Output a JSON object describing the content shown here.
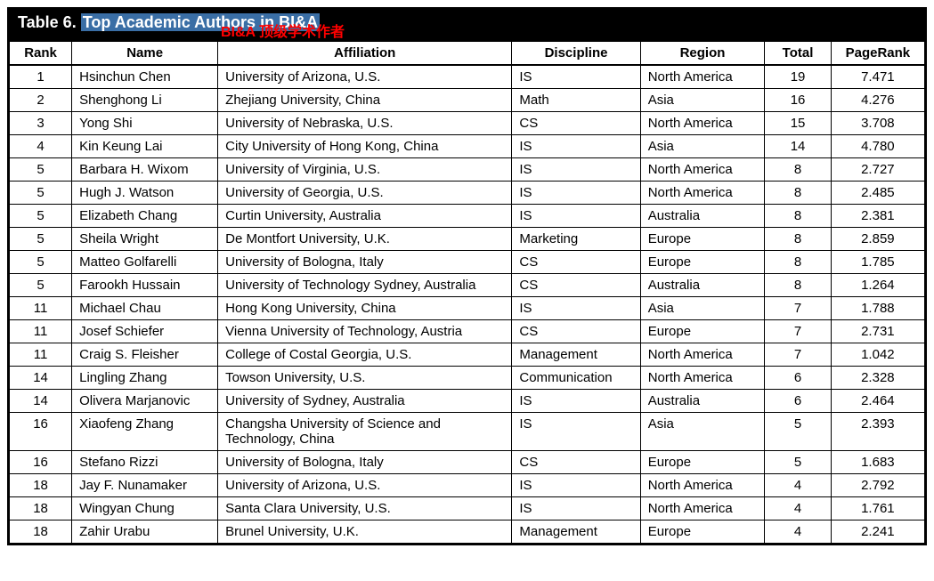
{
  "title": {
    "label": "Table 6.",
    "highlighted": "Top Academic Authors in BI&A",
    "annotation": "BI&A 顶级学术作者"
  },
  "columns": [
    "Rank",
    "Name",
    "Affiliation",
    "Discipline",
    "Region",
    "Total",
    "PageRank"
  ],
  "rows": [
    {
      "rank": "1",
      "name": "Hsinchun Chen",
      "aff": "University of Arizona, U.S.",
      "disc": "IS",
      "region": "North America",
      "total": "19",
      "pr": "7.471"
    },
    {
      "rank": "2",
      "name": "Shenghong Li",
      "aff": "Zhejiang University, China",
      "disc": "Math",
      "region": "Asia",
      "total": "16",
      "pr": "4.276"
    },
    {
      "rank": "3",
      "name": "Yong Shi",
      "aff": "University of Nebraska, U.S.",
      "disc": "CS",
      "region": "North America",
      "total": "15",
      "pr": "3.708"
    },
    {
      "rank": "4",
      "name": "Kin Keung Lai",
      "aff": "City University of Hong Kong, China",
      "disc": "IS",
      "region": "Asia",
      "total": "14",
      "pr": "4.780"
    },
    {
      "rank": "5",
      "name": "Barbara H. Wixom",
      "aff": "University of Virginia, U.S.",
      "disc": "IS",
      "region": "North America",
      "total": "8",
      "pr": "2.727"
    },
    {
      "rank": "5",
      "name": "Hugh J. Watson",
      "aff": "University of Georgia, U.S.",
      "disc": "IS",
      "region": "North America",
      "total": "8",
      "pr": "2.485"
    },
    {
      "rank": "5",
      "name": "Elizabeth Chang",
      "aff": "Curtin University, Australia",
      "disc": "IS",
      "region": "Australia",
      "total": "8",
      "pr": "2.381"
    },
    {
      "rank": "5",
      "name": "Sheila Wright",
      "aff": "De Montfort University, U.K.",
      "disc": "Marketing",
      "region": "Europe",
      "total": "8",
      "pr": "2.859"
    },
    {
      "rank": "5",
      "name": "Matteo Golfarelli",
      "aff": "University of Bologna, Italy",
      "disc": "CS",
      "region": "Europe",
      "total": "8",
      "pr": "1.785"
    },
    {
      "rank": "5",
      "name": "Farookh Hussain",
      "aff": "University of Technology Sydney, Australia",
      "disc": "CS",
      "region": "Australia",
      "total": "8",
      "pr": "1.264"
    },
    {
      "rank": "11",
      "name": "Michael Chau",
      "aff": "Hong Kong University, China",
      "disc": "IS",
      "region": "Asia",
      "total": "7",
      "pr": "1.788"
    },
    {
      "rank": "11",
      "name": "Josef Schiefer",
      "aff": "Vienna University of Technology, Austria",
      "disc": "CS",
      "region": "Europe",
      "total": "7",
      "pr": "2.731"
    },
    {
      "rank": "11",
      "name": "Craig S. Fleisher",
      "aff": "College of Costal Georgia, U.S.",
      "disc": "Management",
      "region": "North America",
      "total": "7",
      "pr": "1.042"
    },
    {
      "rank": "14",
      "name": "Lingling Zhang",
      "aff": "Towson University, U.S.",
      "disc": "Communication",
      "region": "North America",
      "total": "6",
      "pr": "2.328"
    },
    {
      "rank": "14",
      "name": "Olivera Marjanovic",
      "aff": "University of Sydney, Australia",
      "disc": "IS",
      "region": "Australia",
      "total": "6",
      "pr": "2.464"
    },
    {
      "rank": "16",
      "name": "Xiaofeng Zhang",
      "aff": "Changsha University of Science and Technology, China",
      "disc": "IS",
      "region": "Asia",
      "total": "5",
      "pr": "2.393"
    },
    {
      "rank": "16",
      "name": "Stefano Rizzi",
      "aff": "University of Bologna, Italy",
      "disc": "CS",
      "region": "Europe",
      "total": "5",
      "pr": "1.683"
    },
    {
      "rank": "18",
      "name": "Jay F. Nunamaker",
      "aff": "University of Arizona, U.S.",
      "disc": "IS",
      "region": "North America",
      "total": "4",
      "pr": "2.792"
    },
    {
      "rank": "18",
      "name": "Wingyan Chung",
      "aff": "Santa Clara University, U.S.",
      "disc": "IS",
      "region": "North America",
      "total": "4",
      "pr": "1.761"
    },
    {
      "rank": "18",
      "name": "Zahir Urabu",
      "aff": "Brunel University, U.K.",
      "disc": "Management",
      "region": "Europe",
      "total": "4",
      "pr": "2.241"
    }
  ]
}
